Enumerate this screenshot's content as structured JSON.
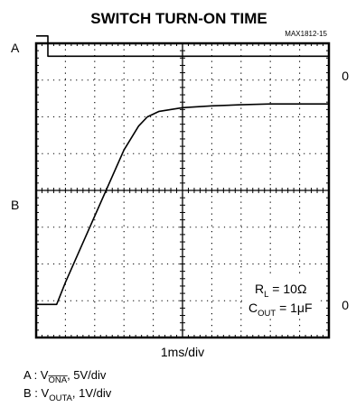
{
  "chart_data": {
    "type": "line",
    "title": "SWITCH TURN-ON TIME",
    "figure_code": "MAX1812-15",
    "x_per_div": "1ms/div",
    "divisions": {
      "x": 10,
      "y": 8
    },
    "grid": true,
    "channels": [
      {
        "name": "A",
        "zero_label": "0",
        "label_prefix": "A : V",
        "label_sub": "ONA",
        "scale": ", 5V/div",
        "overline": true
      },
      {
        "name": "B",
        "zero_label": "0",
        "label_prefix": "B : V",
        "label_sub": "OUTA",
        "scale": ", 1V/div",
        "overline": false
      }
    ],
    "annotations": {
      "rl": {
        "prefix": "R",
        "sub": "L",
        "value": " = 10Ω"
      },
      "cout": {
        "prefix": "C",
        "sub": "OUT",
        "value": " = 1μF"
      }
    },
    "series": [
      {
        "points": [
          [
            0,
            4.2
          ],
          [
            0.4,
            4.2
          ],
          [
            0.4,
            3.65
          ],
          [
            10,
            3.65
          ]
        ]
      },
      {
        "points": [
          [
            0,
            -3.1
          ],
          [
            0.7,
            -3.1
          ],
          [
            0.75,
            -3.0
          ],
          [
            1.0,
            -2.5
          ],
          [
            1.5,
            -1.6
          ],
          [
            2.0,
            -0.7
          ],
          [
            2.5,
            0.2
          ],
          [
            3.0,
            1.1
          ],
          [
            3.5,
            1.75
          ],
          [
            3.8,
            2.0
          ],
          [
            4.2,
            2.15
          ],
          [
            5.0,
            2.25
          ],
          [
            6.0,
            2.3
          ],
          [
            7.0,
            2.33
          ],
          [
            8.0,
            2.35
          ],
          [
            9.0,
            2.35
          ],
          [
            10.0,
            2.35
          ]
        ]
      }
    ]
  }
}
